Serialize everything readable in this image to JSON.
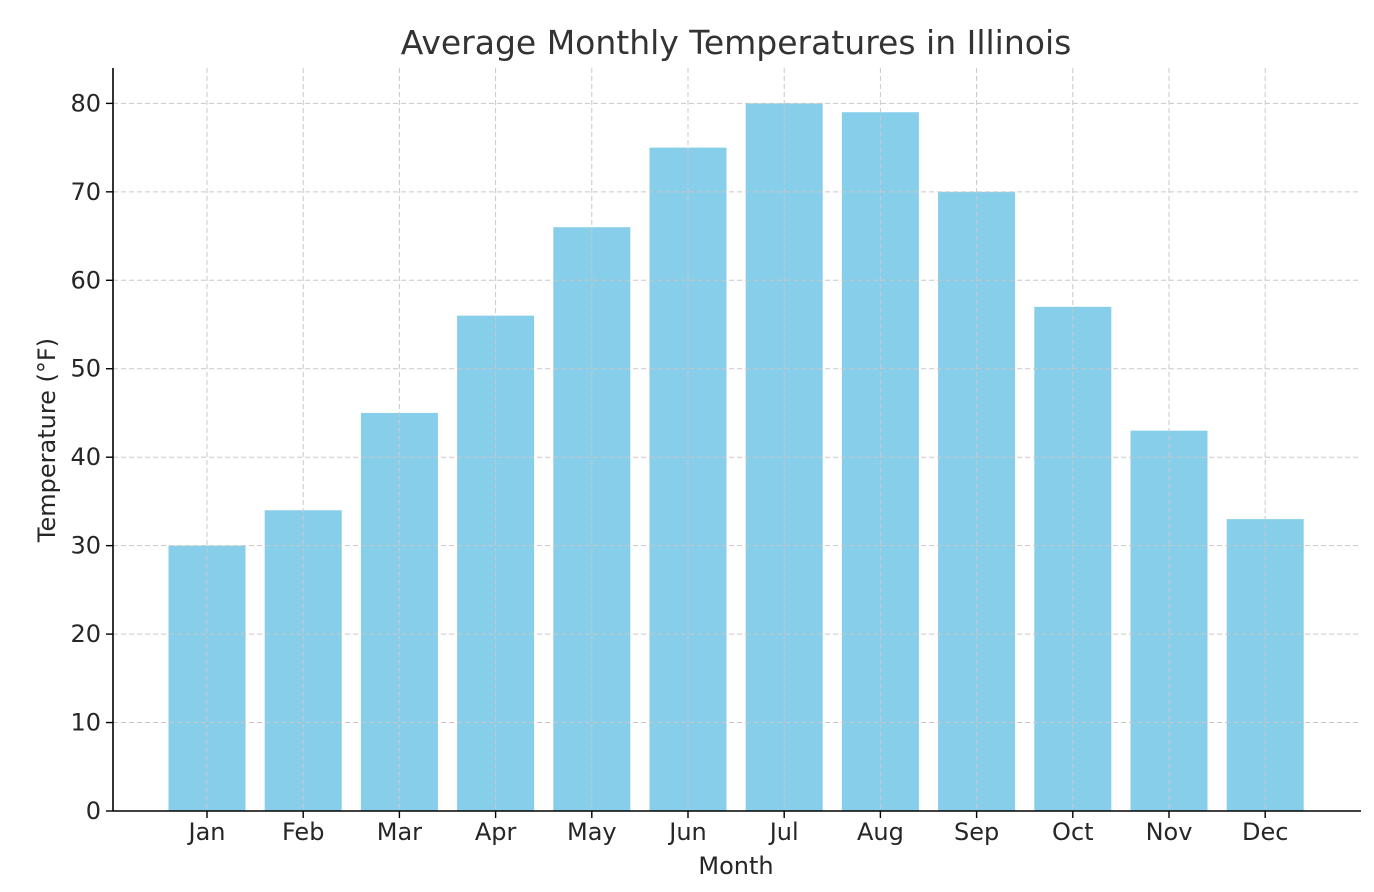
{
  "chart_data": {
    "type": "bar",
    "title": "Average Monthly Temperatures in Illinois",
    "xlabel": "Month",
    "ylabel": "Temperature (°F)",
    "categories": [
      "Jan",
      "Feb",
      "Mar",
      "Apr",
      "May",
      "Jun",
      "Jul",
      "Aug",
      "Sep",
      "Oct",
      "Nov",
      "Dec"
    ],
    "values": [
      30,
      34,
      45,
      56,
      66,
      75,
      80,
      79,
      70,
      57,
      43,
      33
    ],
    "ylim": [
      0,
      84
    ],
    "yticks": [
      "0",
      "10",
      "20",
      "30",
      "40",
      "50",
      "60",
      "70",
      "80"
    ],
    "grid": true,
    "bar_color": "#87ceeb"
  }
}
